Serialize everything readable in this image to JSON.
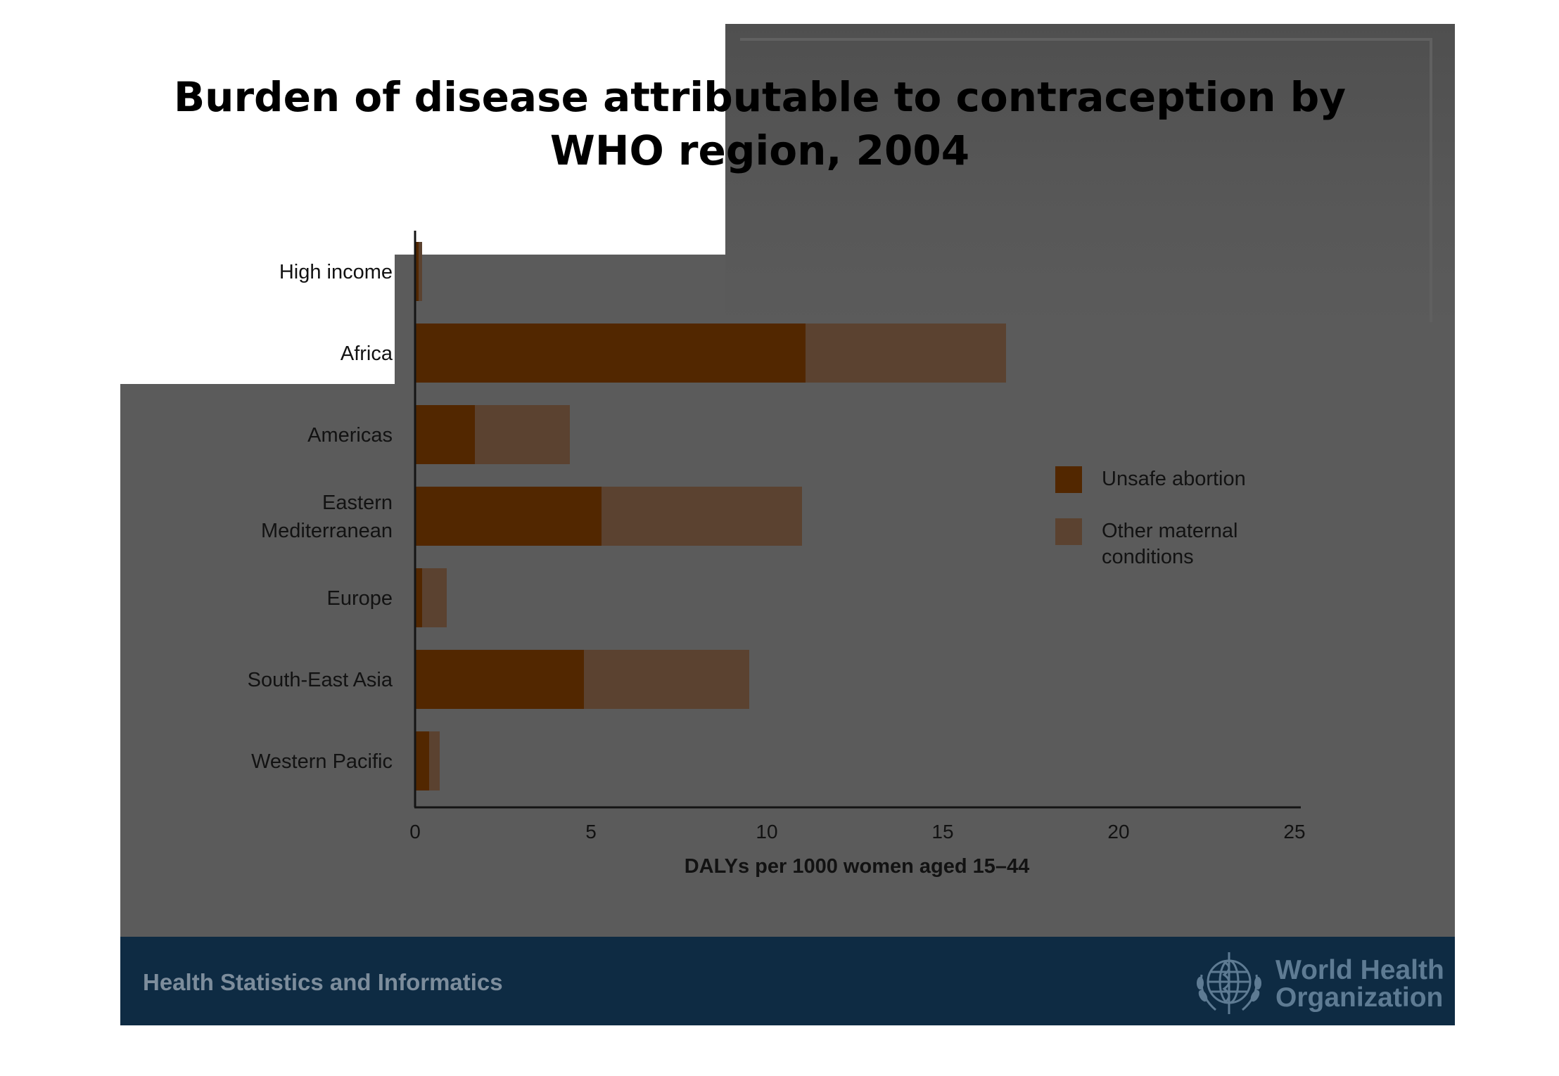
{
  "footer": {
    "left_text": "Health Statistics and Informatics",
    "org_line1": "World Health",
    "org_line2": "Organization",
    "emblem_icon": "who-emblem-icon"
  },
  "colors": {
    "slide_background": "#5b5b5b",
    "footer_background": "#0e2b43",
    "unsafe_abortion": "#522700",
    "other_maternal": "#5b4230"
  },
  "chart_data": {
    "type": "bar",
    "orientation": "horizontal",
    "stacked": true,
    "title": "Burden of disease attributable to contraception by WHO region, 2004",
    "categories": [
      "High income",
      "Africa",
      "Americas",
      "Eastern Mediterranean",
      "Europe",
      "South-East Asia",
      "Western Pacific"
    ],
    "category_lines": [
      [
        "High income"
      ],
      [
        "Africa"
      ],
      [
        "Americas"
      ],
      [
        "Eastern",
        "Mediterranean"
      ],
      [
        "Europe"
      ],
      [
        "South-East Asia"
      ],
      [
        "Western Pacific"
      ]
    ],
    "series": [
      {
        "name": "Unsafe abortion",
        "values": [
          0.1,
          11.1,
          1.7,
          5.3,
          0.2,
          4.8,
          0.4
        ]
      },
      {
        "name": "Other maternal conditions",
        "values": [
          0.1,
          5.7,
          2.7,
          5.7,
          0.7,
          4.7,
          0.3
        ]
      }
    ],
    "legend_lines": [
      [
        "Unsafe abortion"
      ],
      [
        "Other maternal",
        "conditions"
      ]
    ],
    "xlabel": "DALYs per 1000 women aged 15–44",
    "ylabel": "",
    "xlim": [
      0,
      25
    ],
    "xticks": [
      0,
      5,
      10,
      15,
      20,
      25
    ],
    "grid": false,
    "legend_position": "right"
  }
}
